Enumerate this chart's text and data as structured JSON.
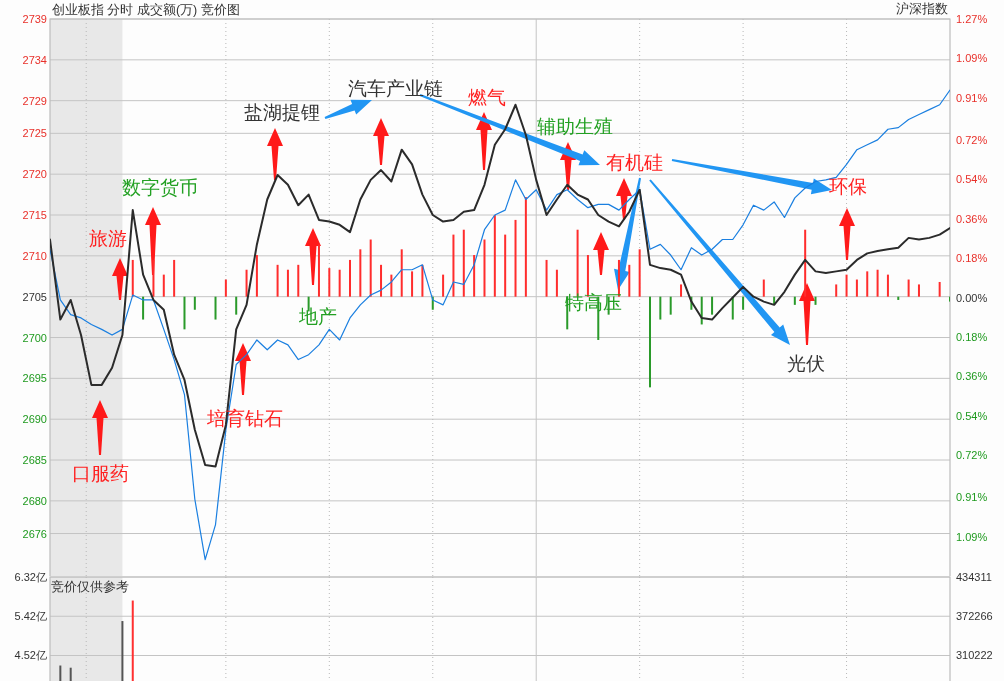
{
  "chart_data": [
    {
      "type": "line",
      "title": "创业板指  分时 成交额(万) 竞价图",
      "categories": [
        null,
        null,
        null,
        null,
        null,
        null,
        null,
        null,
        null,
        null,
        null,
        null,
        null,
        null,
        null,
        null,
        null,
        null,
        null,
        null,
        null,
        null,
        null,
        null,
        null,
        null,
        null,
        null,
        null,
        null,
        null,
        null,
        null,
        null,
        null,
        null,
        null,
        null,
        null,
        null,
        null,
        null,
        null,
        null,
        null,
        null,
        null,
        null,
        null,
        null,
        null,
        null,
        null,
        null,
        null,
        null,
        null,
        null,
        null,
        null,
        null,
        null,
        null,
        null,
        null,
        null,
        null,
        null,
        null,
        null,
        null,
        null,
        null,
        null,
        null,
        null,
        null,
        null,
        null,
        null,
        null,
        null,
        null,
        null,
        null,
        null,
        null,
        null
      ],
      "ylim": [
        2670.8,
        2739.0
      ],
      "yticks": [
        2739,
        2734,
        2729,
        2725,
        2720,
        2715,
        2710,
        2705,
        2700,
        2695,
        2690,
        2685,
        2680,
        2676
      ],
      "y2lim": [
        -1.27,
        1.27
      ],
      "y2ticks": [
        {
          "value": 1.27,
          "label": "1.27%"
        },
        {
          "value": 1.09,
          "label": "1.09%"
        },
        {
          "value": 0.91,
          "label": "0.91%"
        },
        {
          "value": 0.72,
          "label": "0.72%"
        },
        {
          "value": 0.54,
          "label": "0.54%"
        },
        {
          "value": 0.36,
          "label": "0.36%"
        },
        {
          "value": 0.18,
          "label": "0.18%"
        },
        {
          "value": 0,
          "label": "0.00%"
        },
        {
          "value": -0.18,
          "label": "0.18%"
        },
        {
          "value": -0.36,
          "label": "0.36%"
        },
        {
          "value": -0.54,
          "label": "0.54%"
        },
        {
          "value": -0.72,
          "label": "0.72%"
        },
        {
          "value": -0.91,
          "label": "0.91%"
        },
        {
          "value": -1.09,
          "label": "1.09%"
        }
      ],
      "tick_labels": "y",
      "grid": true,
      "series": [
        {
          "type": "bar",
          "color": "#ff2d2d",
          "values": [
            null,
            null,
            null,
            null,
            null,
            null,
            null,
            null,
            4.5,
            null,
            4.5,
            2.7,
            4.5,
            null,
            null,
            null,
            null,
            2.1,
            null,
            3.3,
            5.1,
            null,
            3.9,
            3.3,
            3.9,
            null,
            6.4,
            3.5,
            3.3,
            4.5,
            5.8,
            7.0,
            3.9,
            2.7,
            5.8,
            3.1,
            3.9,
            null,
            2.7,
            7.6,
            8.2,
            5.1,
            7.0,
            10.0,
            7.6,
            9.4,
            12.2,
            null,
            4.5,
            3.3,
            null,
            8.2,
            5.1,
            null,
            null,
            4.5,
            3.9,
            5.8,
            null,
            null,
            null,
            1.5,
            null,
            null,
            null,
            null,
            null,
            null,
            null,
            2.1,
            null,
            null,
            null,
            8.2,
            null,
            null,
            1.5,
            2.7,
            2.1,
            3.1,
            3.3,
            2.7,
            null,
            2.1,
            1.5,
            null,
            1.8,
            null
          ],
          "base": [
            null,
            null,
            null,
            null,
            null,
            null,
            null,
            null,
            2705,
            null,
            2705,
            2705,
            2705,
            null,
            null,
            null,
            null,
            2705,
            null,
            2705,
            2705,
            null,
            2705,
            2705,
            2705,
            null,
            2705,
            2705,
            2705,
            2705,
            2705,
            2705,
            2705,
            2705,
            2705,
            2705,
            2705,
            null,
            2705,
            2705,
            2705,
            2705,
            2705,
            2705,
            2705,
            2705,
            2705,
            null,
            2705,
            2705,
            null,
            2705,
            2705,
            null,
            null,
            2705,
            2705,
            2705,
            null,
            null,
            null,
            2705,
            null,
            null,
            null,
            null,
            null,
            null,
            null,
            2705,
            null,
            null,
            null,
            2705,
            null,
            null,
            2705,
            2705,
            2705,
            2705,
            2705,
            2705,
            null,
            2705,
            2705,
            null,
            2705,
            null
          ]
        },
        {
          "type": "bar",
          "color": "#2a9a2a",
          "values": [
            null,
            null,
            null,
            null,
            null,
            null,
            null,
            null,
            null,
            -2.8,
            null,
            null,
            null,
            -4.0,
            -1.6,
            null,
            -2.8,
            null,
            -2.2,
            null,
            null,
            null,
            null,
            null,
            null,
            -1.8,
            null,
            null,
            null,
            null,
            null,
            null,
            null,
            null,
            null,
            null,
            null,
            -1.6,
            null,
            null,
            null,
            null,
            null,
            null,
            null,
            null,
            null,
            null,
            null,
            null,
            -4.0,
            null,
            null,
            -5.3,
            -2.2,
            null,
            null,
            null,
            -11.1,
            -2.8,
            -2.2,
            null,
            -1.6,
            -3.4,
            -2.2,
            null,
            -2.8,
            -1.6,
            null,
            null,
            -1.0,
            null,
            -1.0,
            null,
            -1.0,
            null,
            null,
            null,
            null,
            null,
            null,
            null,
            -0.4,
            null,
            null,
            null,
            null,
            -0.6
          ],
          "base": [
            null,
            null,
            null,
            null,
            null,
            null,
            null,
            null,
            null,
            2705,
            null,
            null,
            null,
            2705,
            2705,
            null,
            2705,
            null,
            2705,
            null,
            null,
            null,
            null,
            null,
            null,
            2705,
            null,
            null,
            null,
            null,
            null,
            null,
            null,
            null,
            null,
            null,
            null,
            2705,
            null,
            null,
            null,
            null,
            null,
            null,
            null,
            null,
            null,
            null,
            null,
            null,
            2705,
            null,
            null,
            2705,
            2705,
            null,
            null,
            null,
            2705,
            2705,
            2705,
            null,
            2705,
            2705,
            2705,
            null,
            2705,
            2705,
            null,
            null,
            2705,
            null,
            2705,
            null,
            2705,
            null,
            null,
            null,
            null,
            null,
            null,
            null,
            2705,
            null,
            null,
            null,
            null,
            2705
          ]
        },
        {
          "type": "line",
          "color": "#1a7fe0",
          "values": [
            2710.8,
            2704.6,
            2702.8,
            2702.4,
            2701.6,
            2701.0,
            2700.3,
            2701.0,
            2705.2,
            2704.6,
            2704.6,
            2701.0,
            2697.3,
            2693.0,
            2680.2,
            2672.8,
            2677.1,
            2688.7,
            2696.7,
            2697.9,
            2699.7,
            2698.5,
            2699.7,
            2699.1,
            2697.3,
            2697.9,
            2699.1,
            2701.0,
            2699.7,
            2702.4,
            2704.0,
            2705.2,
            2705.8,
            2706.8,
            2708.3,
            2708.3,
            2708.9,
            2704.6,
            2704.0,
            2706.8,
            2706.5,
            2708.9,
            2713.2,
            2715.0,
            2715.6,
            2719.3,
            2716.9,
            2718.1,
            2715.6,
            2717.5,
            2718.1,
            2716.9,
            2715.9,
            2716.3,
            2716.3,
            2715.6,
            2716.9,
            2718.1,
            2710.8,
            2711.4,
            2710.1,
            2708.3,
            2711.0,
            2710.1,
            2710.8,
            2712.0,
            2712.0,
            2713.8,
            2716.2,
            2715.6,
            2716.6,
            2714.7,
            2717.1,
            2718.3,
            2719.1,
            2719.3,
            2719.6,
            2721.2,
            2723.0,
            2723.6,
            2724.2,
            2725.5,
            2725.7,
            2726.7,
            2727.3,
            2727.9,
            2728.5,
            2730.3
          ]
        },
        {
          "type": "line",
          "color": "#2b2b2b",
          "values": [
            2712.0,
            2702.2,
            2704.6,
            2700.3,
            2694.2,
            2694.2,
            2696.3,
            2700.3,
            2715.6,
            2707.7,
            2704.6,
            2703.4,
            2697.9,
            2694.8,
            2688.7,
            2684.4,
            2684.2,
            2689.3,
            2701.0,
            2704.0,
            2711.4,
            2716.9,
            2719.9,
            2718.7,
            2716.2,
            2717.5,
            2714.4,
            2714.2,
            2713.8,
            2712.9,
            2716.9,
            2719.3,
            2720.5,
            2719.1,
            2723.0,
            2721.2,
            2717.5,
            2715.0,
            2714.2,
            2714.4,
            2715.4,
            2715.6,
            2718.7,
            2723.6,
            2725.5,
            2728.5,
            2724.8,
            2719.3,
            2715.0,
            2716.9,
            2718.7,
            2717.5,
            2716.9,
            2715.0,
            2714.2,
            2713.6,
            2715.4,
            2718.1,
            2708.9,
            2708.5,
            2708.3,
            2707.7,
            2704.4,
            2702.4,
            2702.2,
            2703.6,
            2704.9,
            2706.2,
            2705.0,
            2704.4,
            2704.0,
            2705.6,
            2707.7,
            2709.5,
            2708.1,
            2707.9,
            2708.1,
            2708.3,
            2709.5,
            2710.3,
            2710.6,
            2710.8,
            2711.0,
            2712.2,
            2712.0,
            2712.2,
            2712.6,
            2713.4
          ]
        }
      ],
      "annotations": [
        "沪深指数",
        "口服药",
        "旅游",
        "数字货币",
        "培育钻石",
        "盐湖提锂",
        "汽车产业链",
        "地产",
        "燃气",
        "辅助生殖",
        "有机硅",
        "特高压",
        "环保",
        "光伏"
      ]
    },
    {
      "type": "bar",
      "categories": [
        null,
        null,
        null,
        null,
        null,
        null,
        null,
        null,
        null,
        null,
        null,
        null,
        null,
        null,
        null,
        null,
        null,
        null,
        null,
        null,
        null,
        null,
        null,
        null,
        null,
        null,
        null,
        null,
        null,
        null,
        null,
        null,
        null,
        null,
        null,
        null,
        null,
        null,
        null,
        null,
        null,
        null,
        null,
        null,
        null,
        null,
        null,
        null,
        null,
        null,
        null,
        null,
        null,
        null,
        null,
        null,
        null,
        null,
        null,
        null,
        null,
        null,
        null,
        null,
        null,
        null,
        null,
        null,
        null,
        null,
        null,
        null,
        null,
        null,
        null,
        null,
        null,
        null,
        null,
        null,
        null,
        null,
        null,
        null,
        null,
        null,
        null,
        null
      ],
      "ylim": [
        3.935,
        6.32
      ],
      "yticks": [
        {
          "value": 6.32,
          "label": "6.32亿"
        },
        {
          "value": 5.42,
          "label": "5.42亿"
        },
        {
          "value": 4.52,
          "label": "4.52亿"
        }
      ],
      "y2lim": [
        269893,
        434311
      ],
      "y2ticks": [
        434311,
        372266,
        310222
      ],
      "tick_labels": "y",
      "grid": true,
      "series": [
        {
          "color": "#555555",
          "values": [
            null,
            4.29,
            4.24,
            null,
            null,
            null,
            null,
            5.31,
            null,
            null,
            null,
            null,
            null,
            null,
            null,
            null,
            null,
            null,
            null,
            null,
            null,
            null,
            null,
            null,
            null,
            null,
            null,
            null,
            null,
            null,
            null,
            null,
            null,
            null,
            null,
            null,
            null,
            null,
            null,
            null,
            null,
            null,
            null,
            null,
            null,
            null,
            null,
            null,
            null,
            null,
            null,
            null,
            null,
            null,
            null,
            null,
            null,
            null,
            null,
            null,
            null,
            null,
            null,
            null,
            null,
            null,
            null,
            null,
            null,
            null,
            null,
            null,
            null,
            null,
            null,
            null,
            null,
            null,
            null,
            null,
            null,
            null,
            null,
            null,
            null,
            null,
            null,
            null
          ]
        },
        {
          "color": "#ff3030",
          "values": [
            null,
            null,
            null,
            null,
            null,
            null,
            null,
            null,
            5.78,
            null,
            null,
            null,
            null,
            null,
            null,
            null,
            null,
            null,
            null,
            null,
            null,
            null,
            null,
            null,
            null,
            null,
            null,
            null,
            null,
            null,
            null,
            null,
            null,
            null,
            null,
            null,
            null,
            null,
            null,
            null,
            null,
            null,
            null,
            null,
            null,
            null,
            null,
            null,
            null,
            null,
            null,
            null,
            null,
            null,
            null,
            null,
            null,
            null,
            null,
            null,
            null,
            null,
            null,
            null,
            null,
            null,
            null,
            null,
            null,
            null,
            null,
            null,
            null,
            null,
            null,
            null,
            null,
            null,
            null,
            null,
            null,
            null,
            null,
            null,
            null,
            null,
            null,
            null
          ]
        }
      ],
      "annotations": [
        "竞价仅供参考"
      ]
    }
  ]
}
